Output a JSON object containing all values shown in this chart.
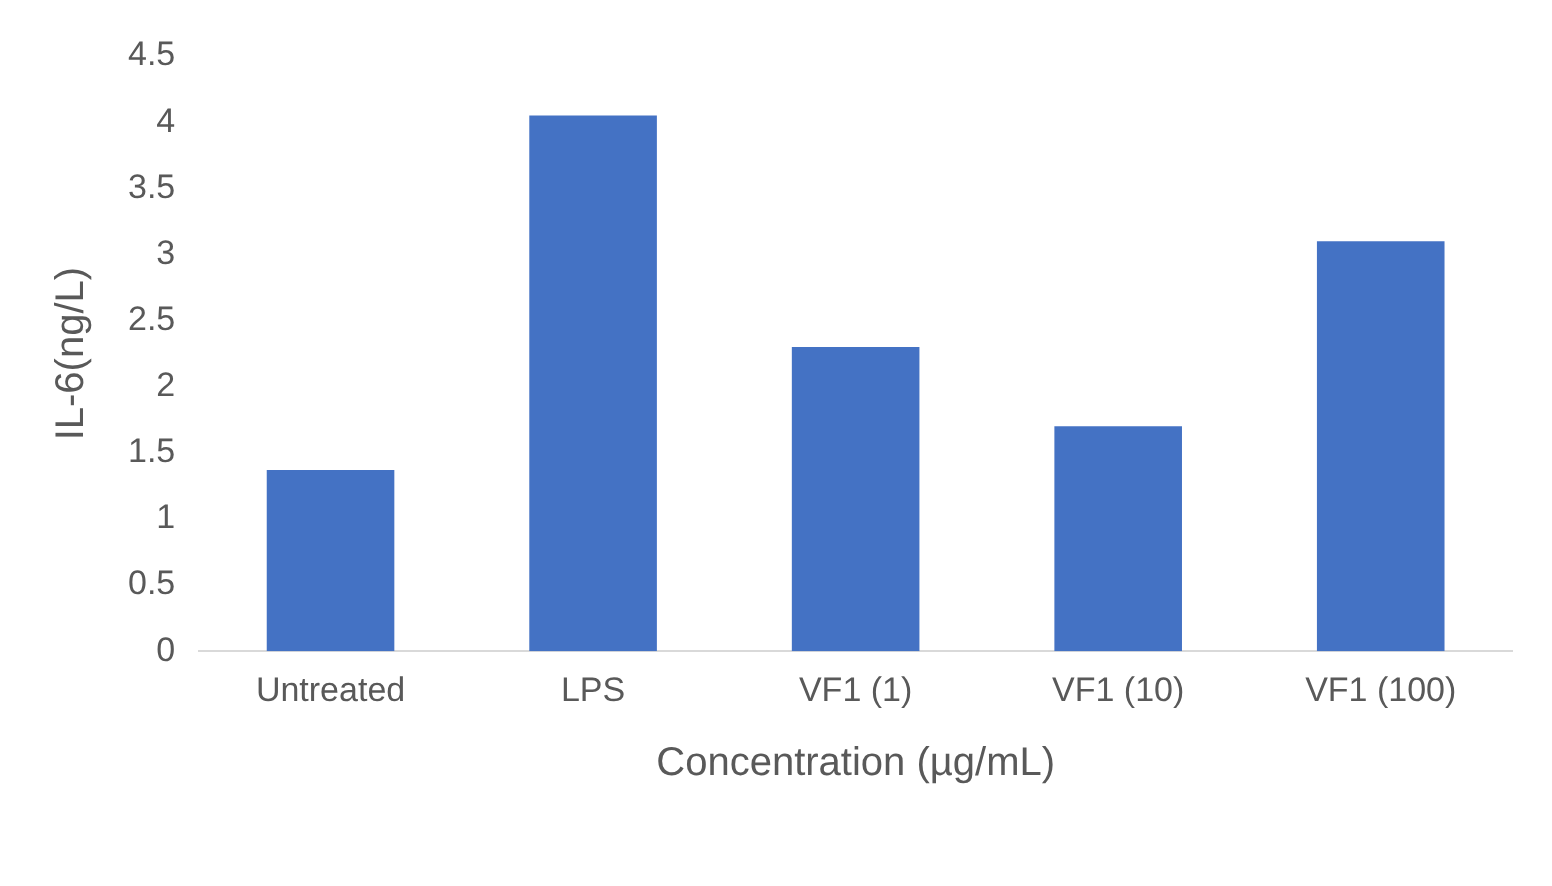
{
  "chart_data": {
    "type": "bar",
    "xlabel": "Concentration (µg/mL)",
    "ylabel": "IL-6(ng/L)",
    "categories": [
      "Untreated",
      "LPS",
      "VF1 (1)",
      "VF1 (10)",
      "VF1 (100)"
    ],
    "values": [
      1.37,
      4.05,
      2.3,
      1.7,
      3.1
    ],
    "color": "#4472c4",
    "ylim": [
      0,
      4.5
    ],
    "yticks": [
      0,
      0.5,
      1,
      1.5,
      2,
      2.5,
      3,
      3.5,
      4,
      4.5
    ],
    "grid": false,
    "legend": false
  }
}
